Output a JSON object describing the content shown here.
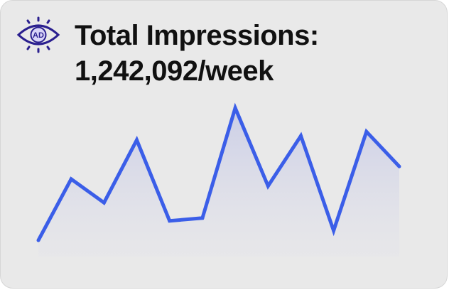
{
  "widget": {
    "title_line_1": "Total Impressions:",
    "title_line_2": "1,242,092/week",
    "icon_text": "AD",
    "icon": "eye-ad-icon"
  },
  "colors": {
    "card_background": "#e9e9e9",
    "line": "#3b5ee8",
    "fill_top": "#c9cce6",
    "icon_purple": "#2a1f8f",
    "icon_fill": "#d8d4f8",
    "text": "#111111"
  },
  "chart_data": {
    "type": "area",
    "title": "",
    "xlabel": "",
    "ylabel": "",
    "axes_visible": false,
    "grid": false,
    "ylim": [
      0,
      100
    ],
    "x": [
      1,
      2,
      3,
      4,
      5,
      6,
      7,
      8,
      9,
      10,
      11,
      12
    ],
    "values": [
      3,
      47,
      30,
      75,
      17,
      19,
      98,
      42,
      78,
      10,
      81,
      56
    ]
  }
}
